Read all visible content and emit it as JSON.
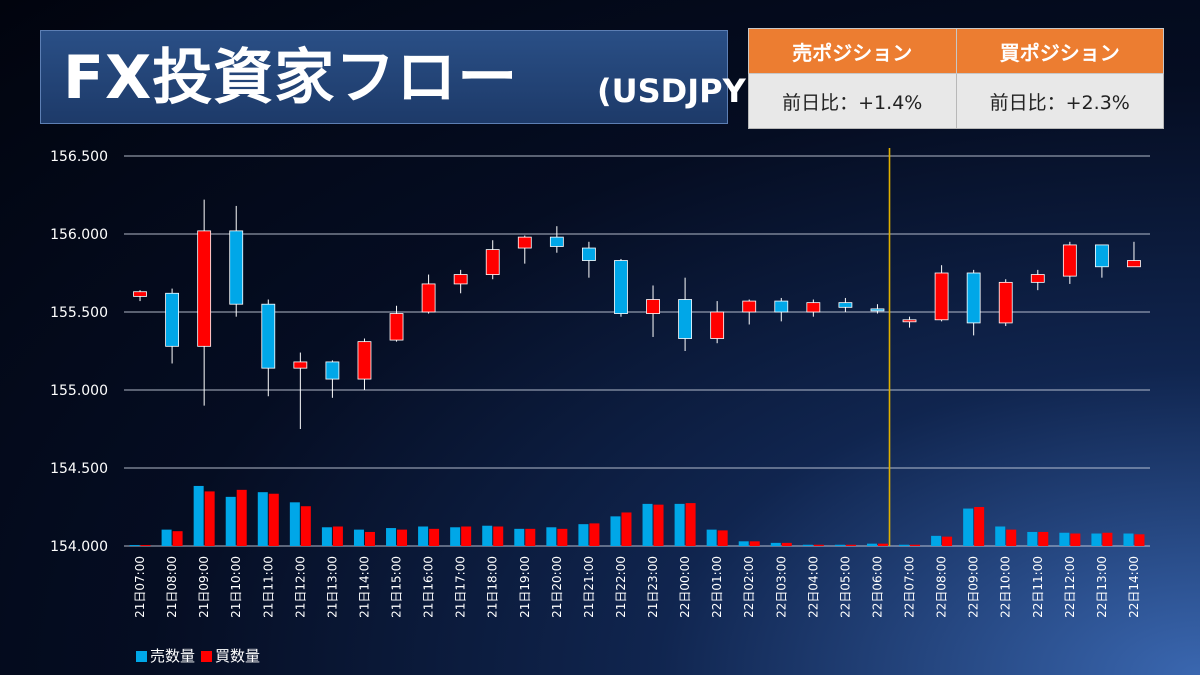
{
  "header": {
    "title": "FX投資家フロー",
    "pair": "(USDJPY)"
  },
  "positions": {
    "sell": {
      "label": "売ポジション",
      "change": "前日比：+1.4%"
    },
    "buy": {
      "label": "買ポジション",
      "change": "前日比：+2.3%"
    }
  },
  "legend": {
    "sell_label": "売数量",
    "buy_label": "買数量"
  },
  "colors": {
    "sell": "#00a7e8",
    "buy": "#ff0000",
    "divider": "#e0b000",
    "grid": "#cfd6e4",
    "header_orange": "#ec7d31"
  },
  "chart_data": {
    "type": "candlestick",
    "y_ticks": [
      "156.500",
      "156.000",
      "155.500",
      "155.000",
      "154.500",
      "154.000"
    ],
    "ylim": [
      154.0,
      156.5
    ],
    "divider_after": "22日06:00",
    "categories": [
      "21日07:00",
      "21日08:00",
      "21日09:00",
      "21日10:00",
      "21日11:00",
      "21日12:00",
      "21日13:00",
      "21日14:00",
      "21日15:00",
      "21日16:00",
      "21日17:00",
      "21日18:00",
      "21日19:00",
      "21日20:00",
      "21日21:00",
      "21日22:00",
      "21日23:00",
      "22日00:00",
      "22日01:00",
      "22日02:00",
      "22日03:00",
      "22日04:00",
      "22日05:00",
      "22日06:00",
      "22日07:00",
      "22日08:00",
      "22日09:00",
      "22日10:00",
      "22日11:00",
      "22日12:00",
      "22日13:00",
      "22日14:00"
    ],
    "candles": [
      {
        "open": 155.6,
        "high": 155.64,
        "low": 155.57,
        "close": 155.63
      },
      {
        "open": 155.62,
        "high": 155.65,
        "low": 155.17,
        "close": 155.28
      },
      {
        "open": 155.28,
        "high": 156.22,
        "low": 154.9,
        "close": 156.02
      },
      {
        "open": 156.02,
        "high": 156.18,
        "low": 155.47,
        "close": 155.55
      },
      {
        "open": 155.55,
        "high": 155.58,
        "low": 154.96,
        "close": 155.14
      },
      {
        "open": 155.14,
        "high": 155.24,
        "low": 154.75,
        "close": 155.18
      },
      {
        "open": 155.18,
        "high": 155.19,
        "low": 154.95,
        "close": 155.07
      },
      {
        "open": 155.07,
        "high": 155.33,
        "low": 155.0,
        "close": 155.31
      },
      {
        "open": 155.32,
        "high": 155.54,
        "low": 155.31,
        "close": 155.49
      },
      {
        "open": 155.5,
        "high": 155.74,
        "low": 155.49,
        "close": 155.68
      },
      {
        "open": 155.68,
        "high": 155.77,
        "low": 155.62,
        "close": 155.74
      },
      {
        "open": 155.74,
        "high": 155.96,
        "low": 155.71,
        "close": 155.9
      },
      {
        "open": 155.91,
        "high": 155.99,
        "low": 155.81,
        "close": 155.98
      },
      {
        "open": 155.98,
        "high": 156.05,
        "low": 155.88,
        "close": 155.92
      },
      {
        "open": 155.91,
        "high": 155.95,
        "low": 155.72,
        "close": 155.83
      },
      {
        "open": 155.83,
        "high": 155.84,
        "low": 155.47,
        "close": 155.49
      },
      {
        "open": 155.49,
        "high": 155.67,
        "low": 155.34,
        "close": 155.58
      },
      {
        "open": 155.58,
        "high": 155.72,
        "low": 155.25,
        "close": 155.33
      },
      {
        "open": 155.33,
        "high": 155.57,
        "low": 155.3,
        "close": 155.5
      },
      {
        "open": 155.5,
        "high": 155.58,
        "low": 155.42,
        "close": 155.57
      },
      {
        "open": 155.57,
        "high": 155.59,
        "low": 155.44,
        "close": 155.5
      },
      {
        "open": 155.5,
        "high": 155.58,
        "low": 155.47,
        "close": 155.56
      },
      {
        "open": 155.56,
        "high": 155.59,
        "low": 155.5,
        "close": 155.53
      },
      {
        "open": 155.52,
        "high": 155.55,
        "low": 155.49,
        "close": 155.51
      },
      {
        "open": 155.44,
        "high": 155.47,
        "low": 155.4,
        "close": 155.45
      },
      {
        "open": 155.45,
        "high": 155.8,
        "low": 155.44,
        "close": 155.75
      },
      {
        "open": 155.75,
        "high": 155.77,
        "low": 155.35,
        "close": 155.43
      },
      {
        "open": 155.43,
        "high": 155.71,
        "low": 155.41,
        "close": 155.69
      },
      {
        "open": 155.69,
        "high": 155.77,
        "low": 155.64,
        "close": 155.74
      },
      {
        "open": 155.73,
        "high": 155.95,
        "low": 155.68,
        "close": 155.93
      },
      {
        "open": 155.93,
        "high": 155.93,
        "low": 155.72,
        "close": 155.79
      },
      {
        "open": 155.79,
        "high": 155.95,
        "low": 155.79,
        "close": 155.83
      }
    ],
    "series": [
      {
        "name": "売数量",
        "values": [
          0.006,
          0.105,
          0.385,
          0.315,
          0.345,
          0.28,
          0.12,
          0.105,
          0.115,
          0.125,
          0.12,
          0.13,
          0.11,
          0.12,
          0.14,
          0.19,
          0.27,
          0.27,
          0.105,
          0.03,
          0.02,
          0.008,
          0.008,
          0.015,
          0.008,
          0.065,
          0.24,
          0.125,
          0.09,
          0.085,
          0.08,
          0.08
        ]
      },
      {
        "name": "買数量",
        "values": [
          0.006,
          0.095,
          0.35,
          0.36,
          0.335,
          0.255,
          0.125,
          0.09,
          0.105,
          0.11,
          0.125,
          0.125,
          0.11,
          0.11,
          0.145,
          0.215,
          0.265,
          0.275,
          0.1,
          0.03,
          0.02,
          0.008,
          0.008,
          0.015,
          0.008,
          0.06,
          0.25,
          0.105,
          0.09,
          0.08,
          0.085,
          0.075
        ]
      }
    ]
  }
}
